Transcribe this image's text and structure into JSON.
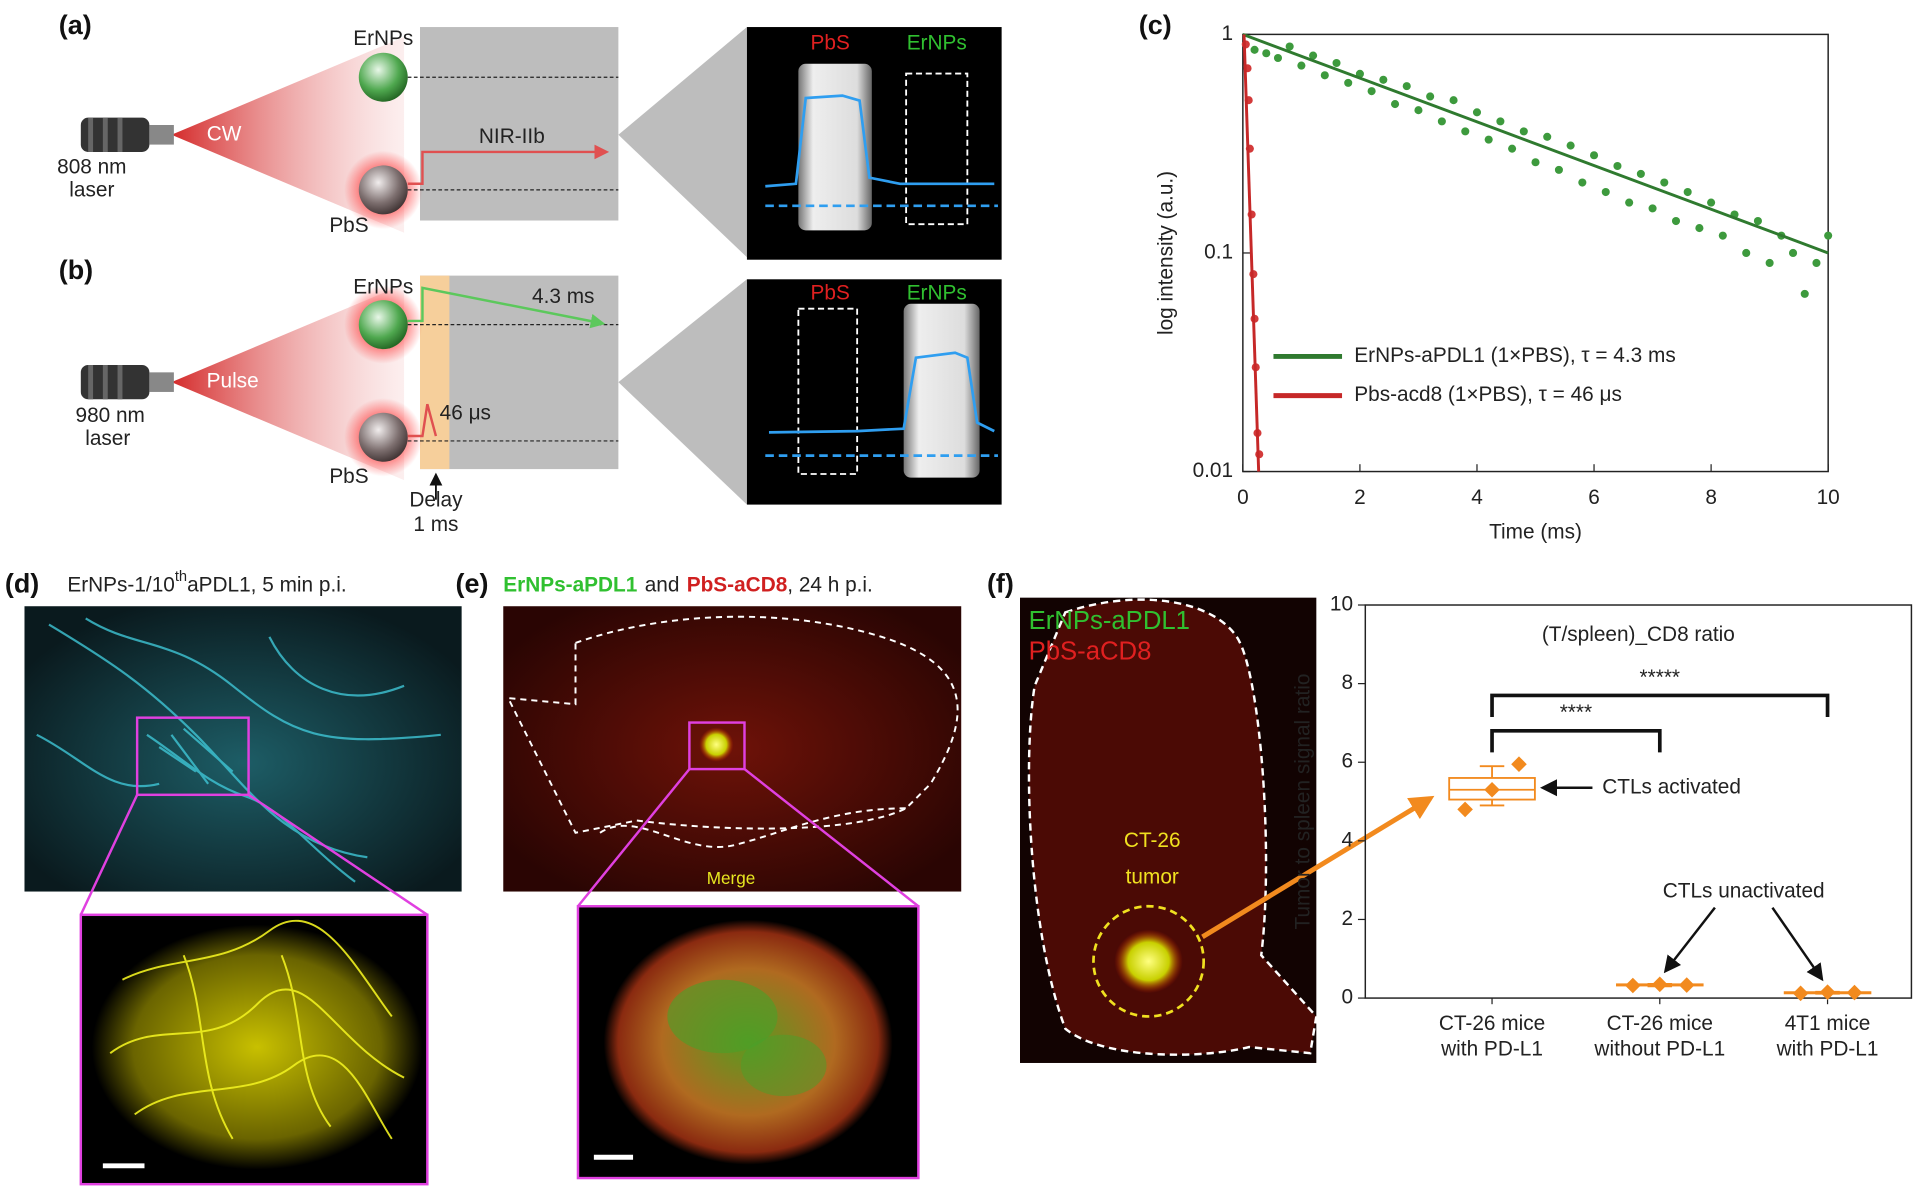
{
  "panel_labels": [
    "(a)",
    "(b)",
    "(c)",
    "(d)",
    "(e)",
    "(f)"
  ],
  "panel_a": {
    "top_particle": "ErNPs",
    "bottom_particle": "PbS",
    "mode": "CW",
    "laser": [
      "808 nm",
      "laser"
    ],
    "emission": "NIR-IIb",
    "image_labels": [
      "PbS",
      "ErNPs"
    ]
  },
  "panel_b": {
    "top_particle": "ErNPs",
    "bottom_particle": "PbS",
    "mode": "Pulse",
    "laser": [
      "980 nm",
      "laser"
    ],
    "top_lifetime": "4.3 ms",
    "bottom_lifetime": "46 μs",
    "delay": [
      "Delay",
      "1 ms"
    ],
    "image_labels": [
      "PbS",
      "ErNPs"
    ]
  },
  "panel_d": {
    "title": [
      "ErNPs-1/10",
      "th",
      "aPDL1, 5 min p.i."
    ]
  },
  "panel_e": {
    "title": [
      "ErNPs-aPDL1",
      "and",
      "PbS-aCD8",
      ", 24 h p.i."
    ],
    "overlay": "Merge"
  },
  "panel_f": {
    "image_labels": [
      "ErNPs-aPDL1",
      "PbS-aCD8"
    ],
    "tumor_label": [
      "CT-26",
      "tumor"
    ]
  },
  "chart_data": [
    {
      "type": "scatter",
      "xlabel": "Time (ms)",
      "ylabel": "log intensity (a.u.)",
      "xlim": [
        0,
        10
      ],
      "ylim": [
        0.01,
        1
      ],
      "yscale": "log",
      "xticks": [
        0,
        2,
        4,
        6,
        8,
        10
      ],
      "yticks": [
        0.01,
        0.1,
        1
      ],
      "legend": "lower left",
      "series": [
        {
          "name": "ErNPs-aPDL1 (1×PBS), τ = 4.3 ms",
          "color": "#3d9a3d",
          "line_color": "#2f7a2f",
          "x": [
            0.2,
            0.4,
            0.6,
            0.8,
            1.0,
            1.2,
            1.4,
            1.6,
            1.8,
            2.0,
            2.2,
            2.4,
            2.6,
            2.8,
            3.0,
            3.2,
            3.4,
            3.6,
            3.8,
            4.0,
            4.2,
            4.4,
            4.6,
            4.8,
            5.0,
            5.2,
            5.4,
            5.6,
            5.8,
            6.0,
            6.2,
            6.4,
            6.6,
            6.8,
            7.0,
            7.2,
            7.4,
            7.6,
            7.8,
            8.0,
            8.2,
            8.4,
            8.6,
            8.8,
            9.0,
            9.2,
            9.4,
            9.6,
            9.8,
            10.0
          ],
          "values": [
            0.85,
            0.82,
            0.78,
            0.88,
            0.72,
            0.8,
            0.65,
            0.74,
            0.6,
            0.66,
            0.55,
            0.62,
            0.48,
            0.58,
            0.45,
            0.52,
            0.4,
            0.5,
            0.36,
            0.44,
            0.33,
            0.4,
            0.3,
            0.36,
            0.26,
            0.34,
            0.24,
            0.31,
            0.21,
            0.28,
            0.19,
            0.25,
            0.17,
            0.23,
            0.16,
            0.21,
            0.14,
            0.19,
            0.13,
            0.17,
            0.12,
            0.15,
            0.1,
            0.14,
            0.09,
            0.12,
            0.1,
            0.065,
            0.09,
            0.12
          ],
          "fit": {
            "x": [
              0,
              10
            ],
            "values": [
              1,
              0.1
            ]
          }
        },
        {
          "name": "Pbs-acd8 (1×PBS), τ = 46 μs",
          "color": "#d33a3a",
          "line_color": "#c62828",
          "x": [
            0.05,
            0.08,
            0.1,
            0.12,
            0.15,
            0.18,
            0.2,
            0.22,
            0.25,
            0.28
          ],
          "values": [
            0.9,
            0.7,
            0.5,
            0.3,
            0.15,
            0.08,
            0.05,
            0.03,
            0.015,
            0.012
          ],
          "fit": {
            "x": [
              0.02,
              0.27
            ],
            "values": [
              1,
              0.01
            ]
          }
        }
      ]
    },
    {
      "type": "box",
      "title": "(T/spleen)_CD8 ratio",
      "ylabel": "Tumor to spleen signal ratio",
      "categories": [
        "CT-26 mice\nwith PD-L1",
        "CT-26 mice\nwithout PD-L1",
        "4T1 mice\nwith PD-L1"
      ],
      "ylim": [
        0,
        10
      ],
      "yticks": [
        0,
        2,
        4,
        6,
        8,
        10
      ],
      "color": "#f28a1e",
      "boxes": [
        {
          "whisker_low": 4.9,
          "q1": 5.05,
          "median": 5.3,
          "q3": 5.6,
          "whisker_high": 5.9
        },
        {
          "whisker_low": 0.3,
          "q1": 0.32,
          "median": 0.33,
          "q3": 0.35,
          "whisker_high": 0.36
        },
        {
          "whisker_low": 0.11,
          "q1": 0.12,
          "median": 0.14,
          "q3": 0.15,
          "whisker_high": 0.16
        }
      ],
      "points": [
        [
          4.8,
          5.3,
          5.95
        ],
        [
          0.32,
          0.35,
          0.33
        ],
        [
          0.12,
          0.15,
          0.14
        ]
      ],
      "brackets": [
        {
          "groups": [
            0,
            1
          ],
          "y": 6.8,
          "label": "****"
        },
        {
          "groups": [
            0,
            2
          ],
          "y": 7.7,
          "label": "*****"
        }
      ],
      "annotations": [
        "CTLs activated",
        "CTLs unactivated"
      ]
    }
  ]
}
